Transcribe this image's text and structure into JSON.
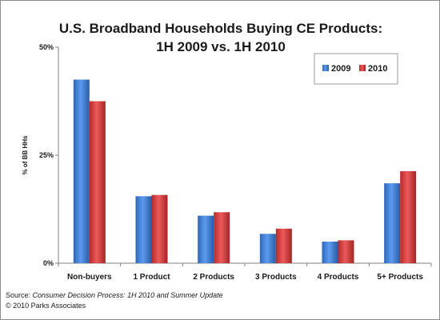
{
  "chart_data": {
    "type": "bar",
    "title": "U.S. Broadband Households Buying CE Products:",
    "subtitle": "1H 2009 vs. 1H 2010",
    "ylabel": "% of BB HHs",
    "xlabel": "",
    "categories": [
      "Non-buyers",
      "1 Product",
      "2 Products",
      "3 Products",
      "4 Products",
      "5+ Products"
    ],
    "series": [
      {
        "name": "2009",
        "color": "#3d7dd8",
        "values": [
          42.5,
          15.5,
          11,
          6.8,
          5,
          18.5
        ]
      },
      {
        "name": "2010",
        "color": "#d63a3a",
        "values": [
          37.5,
          15.8,
          11.8,
          8,
          5.3,
          21.3
        ]
      }
    ],
    "yticks": [
      "0%",
      "25%",
      "50%"
    ],
    "ylim": [
      0,
      50
    ],
    "grid": false,
    "legend": "top-right"
  },
  "footer": {
    "source_prefix": "Source: ",
    "source_title": "Consumer Decision Process: 1H 2010 and Summer Update",
    "copyright": "© 2010 Parks Associates"
  }
}
